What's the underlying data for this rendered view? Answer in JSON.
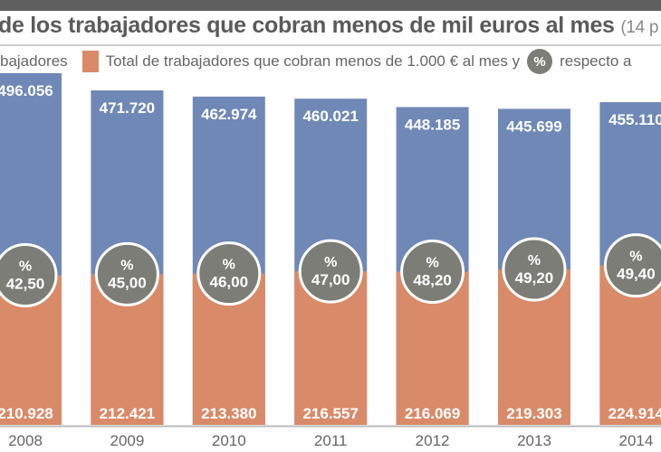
{
  "header": {
    "title": "de los trabajadores que cobran menos de mil euros al mes",
    "subtitle": "(14 p"
  },
  "legend": {
    "total_label": "bajadores",
    "low_label": "Total de trabajadores que cobran menos de 1.000 € al mes y",
    "percent_symbol": "%",
    "percent_label": "respecto a"
  },
  "colors": {
    "total": "#6f88b6",
    "low": "#d98a68",
    "circle": "#7d7d77"
  },
  "chart_data": {
    "type": "bar",
    "stacked": "overlay",
    "categories": [
      "2008",
      "2009",
      "2010",
      "2011",
      "2012",
      "2013",
      "2014"
    ],
    "series": [
      {
        "values": [
          496056,
          471720,
          462974,
          460021,
          448185,
          445699,
          455110
        ],
        "labels": [
          "496.056",
          "471.720",
          "462.974",
          "460.021",
          "448.185",
          "445.699",
          "455.110"
        ]
      },
      {
        "values": [
          210928,
          212421,
          213380,
          216557,
          216069,
          219303,
          224914
        ],
        "labels": [
          "210.928",
          "212.421",
          "213.380",
          "216.557",
          "216.069",
          "219.303",
          "224.914"
        ]
      }
    ],
    "percent": {
      "symbol": "%",
      "values": [
        42.5,
        45.0,
        46.0,
        47.0,
        48.2,
        49.2,
        49.4
      ],
      "labels": [
        "42,50",
        "45,00",
        "46,00",
        "47,00",
        "48,20",
        "49,20",
        "49,40"
      ]
    },
    "grid": false
  }
}
